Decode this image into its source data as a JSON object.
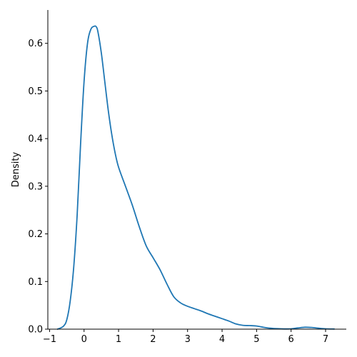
{
  "chart_data": {
    "type": "line",
    "title": "",
    "xlabel": "",
    "ylabel": "Density",
    "xlim": [
      -1.05,
      7.6
    ],
    "ylim": [
      0,
      0.67
    ],
    "xticks": [
      -1,
      0,
      1,
      2,
      3,
      4,
      5,
      6,
      7
    ],
    "yticks": [
      0.0,
      0.1,
      0.2,
      0.3,
      0.4,
      0.5,
      0.6
    ],
    "ytick_labels": [
      "0.0",
      "0.1",
      "0.2",
      "0.3",
      "0.4",
      "0.5",
      "0.6"
    ],
    "grid": false,
    "legend": "none",
    "series": [
      {
        "color": "#1f77b4",
        "x": [
          -0.77,
          -0.6,
          -0.5,
          -0.4,
          -0.3,
          -0.2,
          -0.1,
          0.0,
          0.1,
          0.2,
          0.3,
          0.35,
          0.4,
          0.5,
          0.6,
          0.7,
          0.8,
          0.9,
          1.0,
          1.2,
          1.4,
          1.6,
          1.8,
          2.0,
          2.2,
          2.4,
          2.6,
          2.8,
          3.0,
          3.2,
          3.4,
          3.6,
          3.8,
          4.0,
          4.2,
          4.4,
          4.6,
          4.8,
          5.0,
          5.2,
          5.4,
          5.6,
          5.8,
          6.0,
          6.2,
          6.4,
          6.6,
          6.8,
          7.0,
          7.25
        ],
        "y": [
          0.0,
          0.006,
          0.02,
          0.06,
          0.13,
          0.24,
          0.39,
          0.52,
          0.6,
          0.63,
          0.636,
          0.635,
          0.625,
          0.58,
          0.52,
          0.46,
          0.41,
          0.37,
          0.34,
          0.3,
          0.26,
          0.215,
          0.175,
          0.15,
          0.125,
          0.095,
          0.068,
          0.055,
          0.048,
          0.043,
          0.038,
          0.032,
          0.027,
          0.022,
          0.017,
          0.011,
          0.008,
          0.0075,
          0.0065,
          0.004,
          0.002,
          0.001,
          0.0005,
          0.0008,
          0.0025,
          0.004,
          0.0035,
          0.002,
          0.0008,
          0.0003
        ]
      }
    ]
  }
}
